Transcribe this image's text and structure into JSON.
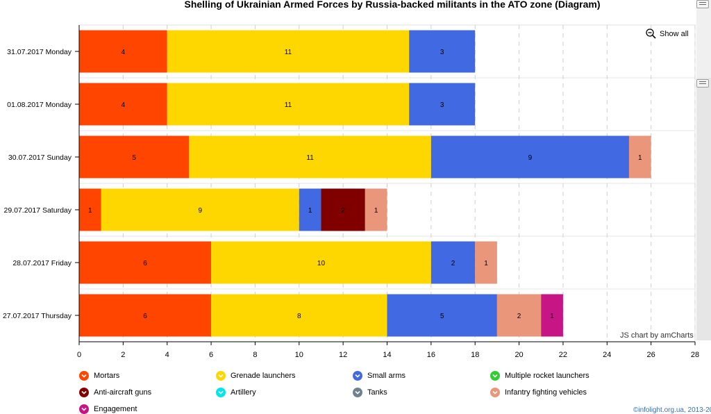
{
  "page": {
    "title": "Shelling of Ukrainian Armed Forces by Russia-backed militants in the ATO zone (Diagram)",
    "show_all_label": "Show all",
    "credit": "JS chart by amCharts",
    "copyright": "©infolight.org.ua, 2013-20"
  },
  "legend": [
    {
      "name": "Mortars",
      "color": "#FF4500"
    },
    {
      "name": "Grenade launchers",
      "color": "#FFD700"
    },
    {
      "name": "Small arms",
      "color": "#4169E1"
    },
    {
      "name": "Multiple rocket launchers",
      "color": "#32CD32"
    },
    {
      "name": "Anti-aircraft guns",
      "color": "#800000"
    },
    {
      "name": "Artillery",
      "color": "#00E5EE"
    },
    {
      "name": "Tanks",
      "color": "#708090"
    },
    {
      "name": "Infantry fighting vehicles",
      "color": "#E9967A"
    },
    {
      "name": "Engagement",
      "color": "#C71585"
    }
  ],
  "chart_data": {
    "type": "bar",
    "orientation": "horizontal",
    "stacked": true,
    "title": "Shelling of Ukrainian Armed Forces by Russia-backed militants in the ATO zone (Diagram)",
    "categories": [
      "31.07.2017 Monday",
      "01.08.2017 Monday",
      "30.07.2017 Sunday",
      "29.07.2017 Saturday",
      "28.07.2017 Friday",
      "27.07.2017 Thursday"
    ],
    "xlim": [
      0,
      28
    ],
    "xticks": [
      0,
      2,
      4,
      6,
      8,
      10,
      12,
      14,
      16,
      18,
      20,
      22,
      24,
      26,
      28
    ],
    "grid": true,
    "legend_position": "bottom",
    "series": [
      {
        "name": "Mortars",
        "values": [
          4,
          4,
          5,
          1,
          6,
          6
        ]
      },
      {
        "name": "Grenade launchers",
        "values": [
          11,
          11,
          11,
          9,
          10,
          8
        ]
      },
      {
        "name": "Small arms",
        "values": [
          3,
          3,
          9,
          1,
          2,
          5
        ]
      },
      {
        "name": "Multiple rocket launchers",
        "values": [
          0,
          0,
          0,
          0,
          0,
          0
        ]
      },
      {
        "name": "Anti-aircraft guns",
        "values": [
          0,
          0,
          0,
          2,
          0,
          0
        ]
      },
      {
        "name": "Artillery",
        "values": [
          0,
          0,
          0,
          0,
          0,
          0
        ]
      },
      {
        "name": "Tanks",
        "values": [
          0,
          0,
          0,
          0,
          0,
          0
        ]
      },
      {
        "name": "Infantry fighting vehicles",
        "values": [
          0,
          0,
          1,
          1,
          1,
          2
        ]
      },
      {
        "name": "Engagement",
        "values": [
          0,
          0,
          0,
          0,
          0,
          1
        ]
      }
    ]
  }
}
